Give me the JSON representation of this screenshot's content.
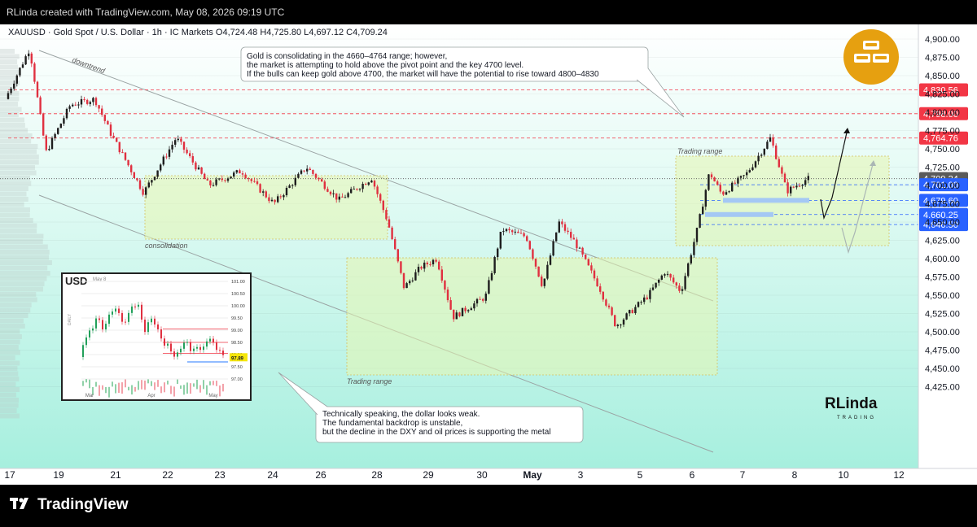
{
  "header": {
    "credit": "RLinda created with TradingView.com, May 08, 2026 09:19 UTC"
  },
  "footer": {
    "brand": "TradingView"
  },
  "symbol_line": {
    "text": "XAUUSD · Gold Spot / U.S. Dollar · 1h · IC Markets  O4,724.48  H4,725.80  L4,697.12  C4,709.24"
  },
  "annotations": {
    "top_note": [
      "Gold is consolidating in the 4660–4764 range; however,",
      "the market is attempting to hold above the pivot point and the key 4700 level.",
      "If the bulls can keep gold above 4700, the market will have the potential to rise toward 4800–4830"
    ],
    "bottom_note": [
      "Technically speaking, the dollar looks weak.",
      "The fundamental backdrop is unstable,",
      "but the decline in the DXY and oil prices is supporting the metal"
    ],
    "downtrend": "downtrend",
    "consolidation": "consolidation",
    "trading_range_left": "Trading range",
    "trading_range_right": "Trading range"
  },
  "brand_watermark": {
    "name": "RLinda",
    "sub": "TRADING"
  },
  "colors": {
    "bg_top": "#ffffff",
    "bg_bottom": "#aef0e2",
    "up": "#1e1e1e",
    "down": "#e03040",
    "level_red": "#f23645",
    "level_blue": "#2962ff",
    "price_grey": "#5a5a5a",
    "icon_gold": "#e6a010"
  },
  "chart_data": {
    "type": "candlestick",
    "symbol": "XAUUSD",
    "timeframe": "1h",
    "ohlc_last": {
      "open": 4724.48,
      "high": 4725.8,
      "low": 4697.12,
      "close": 4709.24
    },
    "x_ticks": [
      "17",
      "19",
      "21",
      "22",
      "23",
      "24",
      "26",
      "28",
      "29",
      "30",
      "May",
      "3",
      "5",
      "6",
      "7",
      "8",
      "10",
      "12"
    ],
    "ylim": [
      4410,
      4915
    ],
    "y_ticks": [
      "4,900.00",
      "4,875.00",
      "4,850.00",
      "4,825.00",
      "4,800.00",
      "4,775.00",
      "4,750.00",
      "4,725.00",
      "4,700.00",
      "4,675.00",
      "4,650.00",
      "4,625.00",
      "4,600.00",
      "4,575.00",
      "4,550.00",
      "4,525.00",
      "4,500.00",
      "4,475.00",
      "4,450.00",
      "4,425.00"
    ],
    "levels": [
      {
        "label": "4,830.56",
        "value": 4830.56,
        "kind": "red"
      },
      {
        "label": "4,798.00",
        "value": 4798.0,
        "kind": "red"
      },
      {
        "label": "4,764.76",
        "value": 4764.76,
        "kind": "red"
      },
      {
        "label": "4,709.24",
        "value": 4709.24,
        "kind": "price"
      },
      {
        "label": "4,701.00",
        "value": 4701.0,
        "kind": "blue"
      },
      {
        "label": "4,679.60",
        "value": 4679.6,
        "kind": "blue"
      },
      {
        "label": "4,660.25",
        "value": 4660.25,
        "kind": "blue"
      },
      {
        "label": "4,646.50",
        "value": 4646.5,
        "kind": "blue"
      }
    ],
    "anchor_path": [
      [
        0,
        4795
      ],
      [
        40,
        4887
      ],
      [
        60,
        4745
      ],
      [
        90,
        4810
      ],
      [
        120,
        4818
      ],
      [
        140,
        4770
      ],
      [
        180,
        4690
      ],
      [
        220,
        4765
      ],
      [
        260,
        4700
      ],
      [
        300,
        4720
      ],
      [
        340,
        4675
      ],
      [
        380,
        4725
      ],
      [
        420,
        4680
      ],
      [
        460,
        4710
      ],
      [
        480,
        4650
      ],
      [
        500,
        4560
      ],
      [
        520,
        4588
      ],
      [
        540,
        4600
      ],
      [
        560,
        4520
      ],
      [
        600,
        4548
      ],
      [
        620,
        4640
      ],
      [
        650,
        4630
      ],
      [
        670,
        4562
      ],
      [
        690,
        4650
      ],
      [
        710,
        4622
      ],
      [
        740,
        4560
      ],
      [
        760,
        4508
      ],
      [
        800,
        4550
      ],
      [
        820,
        4582
      ],
      [
        840,
        4555
      ],
      [
        860,
        4640
      ],
      [
        875,
        4718
      ],
      [
        890,
        4688
      ],
      [
        920,
        4715
      ],
      [
        950,
        4765
      ],
      [
        970,
        4692
      ],
      [
        995,
        4709
      ]
    ],
    "inset": {
      "title": "USD",
      "date": "May 8",
      "y_ticks": [
        "101.00",
        "100.50",
        "100.00",
        "99.50",
        "99.00",
        "98.50",
        "98.00",
        "97.50",
        "97.00"
      ],
      "x_ticks": [
        "Mar",
        "Apr",
        "May"
      ],
      "ylim": [
        96.9,
        101.1
      ],
      "last": "97.89",
      "last_value": 97.89,
      "red_levels": [
        99.05,
        98.5,
        98.05
      ],
      "blue_level": 97.7,
      "anchor_path": [
        [
          0,
          97.9
        ],
        [
          10,
          98.9
        ],
        [
          20,
          99.4
        ],
        [
          30,
          99.1
        ],
        [
          40,
          99.9
        ],
        [
          55,
          99.3
        ],
        [
          70,
          100.2
        ],
        [
          80,
          99.0
        ],
        [
          90,
          99.5
        ],
        [
          100,
          98.7
        ],
        [
          115,
          98.0
        ],
        [
          130,
          98.5
        ],
        [
          140,
          98.1
        ],
        [
          160,
          98.6
        ],
        [
          175,
          97.9
        ]
      ]
    }
  }
}
